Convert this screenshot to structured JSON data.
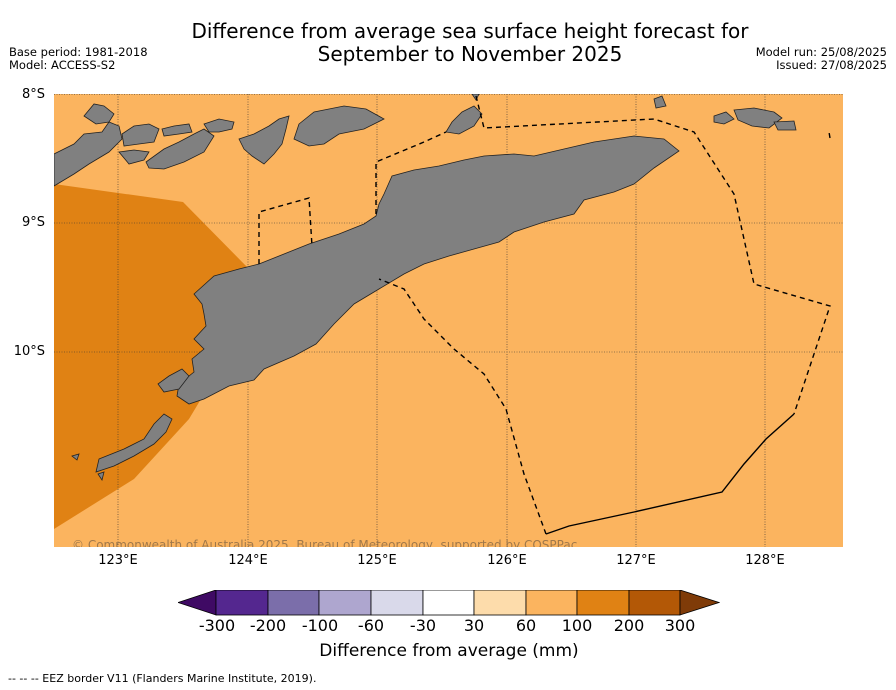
{
  "title_line1": "Difference from average sea surface height forecast for",
  "title_line2": "September to November 2025",
  "left_meta": {
    "base_period": "Base period: 1981-2018",
    "model": "Model: ACCESS-S2"
  },
  "right_meta": {
    "model_run": "Model run: 25/08/2025",
    "issued": "Issued: 27/08/2025"
  },
  "lat_labels": [
    "8°S",
    "9°S",
    "10°S"
  ],
  "lon_labels": [
    "123°E",
    "124°E",
    "125°E",
    "126°E",
    "127°E",
    "128°E"
  ],
  "copyright": "© Commonwealth of Australia 2025, Bureau of Meteorology, supported by COSPPac",
  "colorbar": {
    "title": "Difference from average (mm)",
    "ticks": [
      "-300",
      "-200",
      "-100",
      "-60",
      "-30",
      "30",
      "60",
      "100",
      "200",
      "300"
    ],
    "colors": [
      "#3f0a64",
      "#54278f",
      "#7b6eaa",
      "#aea6cf",
      "#d9d9ea",
      "#ffffff",
      "#fddcab",
      "#fbb45f",
      "#e08214",
      "#b35806",
      "#7f3b08"
    ]
  },
  "footnote": "--  --  -- EEZ border V11 (Flanders Marine Institute, 2019).",
  "legend_colors": {
    "ocean_main": "#fbb45f",
    "ocean_high": "#e08214",
    "land": "#808080"
  }
}
